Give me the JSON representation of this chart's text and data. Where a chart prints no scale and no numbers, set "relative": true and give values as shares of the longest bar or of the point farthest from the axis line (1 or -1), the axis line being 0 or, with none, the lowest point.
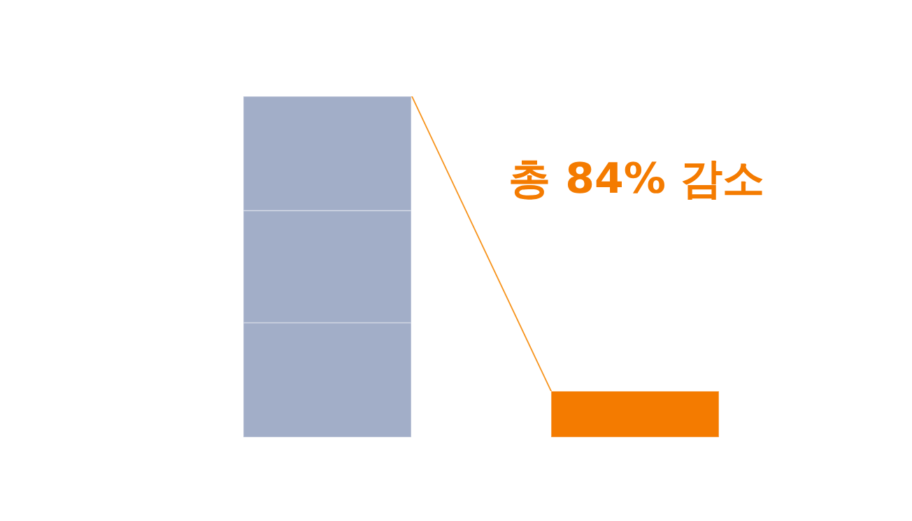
{
  "chart_data": {
    "type": "bar",
    "relative": true,
    "stacked": true,
    "categories": [
      null,
      null
    ],
    "series": [
      {
        "colors": [
          "#a2aec8",
          "#f47b00"
        ],
        "values": [
          0.336,
          0.135
        ]
      },
      {
        "color": "#a2aec8",
        "values": [
          0.329,
          null
        ]
      },
      {
        "color": "#a2aec8",
        "values": [
          0.335,
          null
        ]
      }
    ],
    "annotations": [
      "총 84% 감소"
    ]
  }
}
